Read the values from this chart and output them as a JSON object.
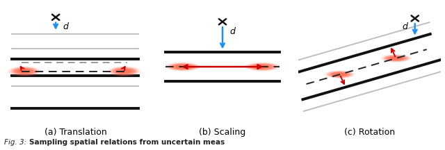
{
  "bg_color": "#f5f5f5",
  "panel_bg": "#f0f0f0",
  "panel_titles": [
    "(a) Translation",
    "(b) Scaling",
    "(c) Rotation"
  ],
  "line_black": "#111111",
  "line_gray": "#999999",
  "line_lgray": "#bbbbbb",
  "arrow_red": "#cc0000",
  "arrow_blue": "#1a90ff",
  "dash_gray": "#888888",
  "dash_black": "#222222",
  "blob_rgb": [
    1.0,
    0.45,
    0.35
  ],
  "title_fontsize": 9
}
